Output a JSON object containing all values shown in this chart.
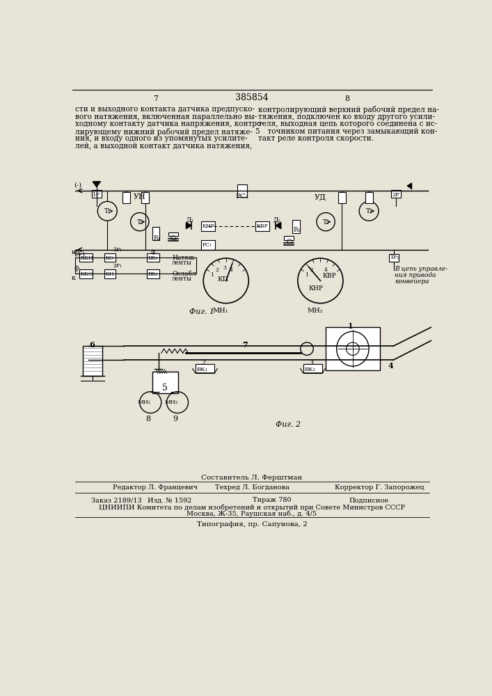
{
  "page_color": "#e8e4d8",
  "title": "385854",
  "page_left": "7",
  "page_right": "8",
  "text_left_lines": [
    "сти и выходного контакта датчика предпуско-",
    "вого натяжения, включенная параллельно вы-",
    "ходному контакту датчика напряжения, контро-",
    "лирующему нижний рабочий предел натяже-",
    "ния, и входу одного из упомянутых усилите-",
    "лей, а выходной контакт датчика натяжения,"
  ],
  "text_right_lines": [
    "контролирующий верхний рабочий предел на-",
    "тяжения, подключен ко входу другого усили-",
    "теля, выходная цепь которого соединена с ис-",
    "точником питания через замыкающий кон-",
    "такт реле контроля скорости."
  ],
  "line_num_right": "5",
  "fig1_label": "Фиг. 1",
  "fig2_label": "Фиг. 2",
  "footer_composer": "Составитель Л. Ферштман",
  "footer_editor": "Редактор Л. Францевич",
  "footer_tech": "Техред Л. Богданова",
  "footer_corrector": "Корректор Г. Запорожец",
  "footer_order": "Заказ 2189/13",
  "footer_pub": "Изд. № 1592",
  "footer_print": "Тираж 780",
  "footer_signed": "Подписное",
  "footer_org": "ЦНИИПИ Комитета по делам изобретений и открытий при Совете Министров СССР",
  "footer_addr": "Москва, Ж-35, Раушская наб., д. 4/5",
  "footer_typ": "Типография, пр. Сапунова, 2"
}
